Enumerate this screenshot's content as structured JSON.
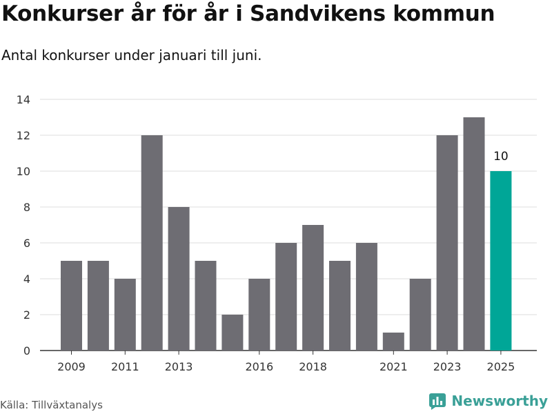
{
  "header": {
    "title": "Konkurser år för år i Sandvikens kommun",
    "subtitle": "Antal konkurser under januari till juni."
  },
  "footer": {
    "source": "Källa: Tillväxtanalys",
    "brand": "Newsworthy",
    "brand_icon": "bar-chart-logo-icon"
  },
  "colors": {
    "bar": "#6e6d73",
    "highlight": "#00a697",
    "grid": "#dddddd",
    "axis": "#333333",
    "brand": "#3aa097"
  },
  "chart_data": {
    "type": "bar",
    "categories": [
      "2009",
      "2010",
      "2011",
      "2012",
      "2013",
      "2014",
      "2015",
      "2016",
      "2017",
      "2018",
      "2019",
      "2020",
      "2021",
      "2022",
      "2023",
      "2024",
      "2025"
    ],
    "values": [
      5,
      5,
      4,
      12,
      8,
      5,
      2,
      4,
      6,
      7,
      5,
      6,
      1,
      4,
      12,
      13,
      10
    ],
    "x_tick_labels": [
      "2009",
      "2011",
      "2013",
      "2016",
      "2018",
      "2021",
      "2023",
      "2025"
    ],
    "y_ticks": [
      0,
      2,
      4,
      6,
      8,
      10,
      12,
      14
    ],
    "ylim": [
      0,
      14
    ],
    "highlight_index": 16,
    "data_labels": [
      {
        "index": 16,
        "text": "10"
      }
    ],
    "grid": true,
    "legend": false,
    "xlabel": "",
    "ylabel": ""
  }
}
